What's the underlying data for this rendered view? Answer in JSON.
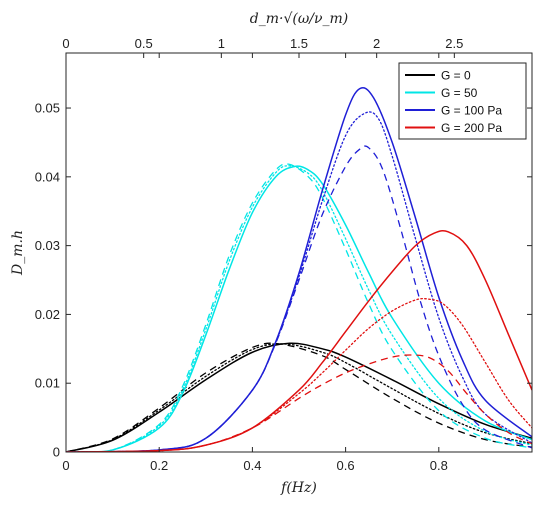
{
  "chart_data": {
    "type": "line",
    "xlabel": "f(Hz)",
    "ylabel": "D_m.h",
    "top_xlabel": "d_m·√(ω/ν_m)",
    "xlim": [
      0,
      1.0
    ],
    "ylim": [
      0,
      0.058
    ],
    "top_xlim": [
      0,
      3.0
    ],
    "x_ticks": [
      0,
      0.2,
      0.4,
      0.6,
      0.8
    ],
    "x_tick_labels": [
      "0",
      "0.2",
      "0.4",
      "0.6",
      "0.8"
    ],
    "y_ticks": [
      0,
      0.01,
      0.02,
      0.03,
      0.04,
      0.05
    ],
    "y_tick_labels": [
      "0",
      "0.01",
      "0.02",
      "0.03",
      "0.04",
      "0.05"
    ],
    "top_ticks": [
      0,
      0.5,
      1,
      1.5,
      2,
      2.5
    ],
    "top_tick_labels": [
      "0",
      "0.5",
      "1",
      "1.5",
      "2",
      "2.5"
    ],
    "grid": false,
    "legend_position": "top-right",
    "series": [
      {
        "name": "G = 0",
        "color": "#000000",
        "style": "solid",
        "x": [
          0,
          0.1,
          0.2,
          0.3,
          0.4,
          0.48,
          0.55,
          0.6,
          0.7,
          0.8,
          0.9,
          1.0
        ],
        "y": [
          0,
          0.0017,
          0.0058,
          0.0105,
          0.0145,
          0.0158,
          0.015,
          0.0138,
          0.0105,
          0.007,
          0.004,
          0.002
        ]
      },
      {
        "name": "",
        "color": "#000000",
        "style": "dashed",
        "x": [
          0,
          0.1,
          0.2,
          0.3,
          0.4,
          0.46,
          0.55,
          0.6,
          0.7,
          0.8,
          0.9,
          1.0
        ],
        "y": [
          0,
          0.0019,
          0.0064,
          0.0115,
          0.0152,
          0.0157,
          0.014,
          0.012,
          0.0078,
          0.0042,
          0.0018,
          0.0007
        ]
      },
      {
        "name": "",
        "color": "#000000",
        "style": "dotted",
        "x": [
          0,
          0.1,
          0.2,
          0.3,
          0.4,
          0.47,
          0.55,
          0.6,
          0.7,
          0.8,
          0.9,
          1.0
        ],
        "y": [
          0,
          0.0018,
          0.0061,
          0.011,
          0.0149,
          0.0157,
          0.0145,
          0.013,
          0.0092,
          0.0056,
          0.0028,
          0.0012
        ]
      },
      {
        "name": "G = 50",
        "color": "#00e6e6",
        "style": "solid",
        "x": [
          0,
          0.1,
          0.2,
          0.25,
          0.3,
          0.35,
          0.4,
          0.45,
          0.49,
          0.52,
          0.55,
          0.6,
          0.65,
          0.7,
          0.8,
          0.9,
          1.0
        ],
        "y": [
          0,
          0.0003,
          0.0035,
          0.0085,
          0.017,
          0.0265,
          0.0348,
          0.04,
          0.0415,
          0.041,
          0.039,
          0.033,
          0.026,
          0.0195,
          0.01,
          0.0045,
          0.0018
        ]
      },
      {
        "name": "",
        "color": "#00e6e6",
        "style": "dashed",
        "x": [
          0,
          0.1,
          0.2,
          0.25,
          0.3,
          0.35,
          0.4,
          0.45,
          0.48,
          0.52,
          0.55,
          0.6,
          0.65,
          0.7,
          0.8,
          0.9,
          1.0
        ],
        "y": [
          0,
          0.0003,
          0.004,
          0.0095,
          0.0185,
          0.0285,
          0.0362,
          0.041,
          0.0418,
          0.04,
          0.037,
          0.0295,
          0.0215,
          0.0148,
          0.006,
          0.002,
          0.0006
        ]
      },
      {
        "name": "",
        "color": "#00e6e6",
        "style": "dotted",
        "x": [
          0,
          0.1,
          0.2,
          0.25,
          0.3,
          0.35,
          0.4,
          0.45,
          0.48,
          0.52,
          0.55,
          0.6,
          0.65,
          0.7,
          0.8,
          0.9,
          1.0
        ],
        "y": [
          0,
          0.0003,
          0.0038,
          0.009,
          0.0178,
          0.0277,
          0.0356,
          0.0406,
          0.0416,
          0.0405,
          0.038,
          0.031,
          0.0235,
          0.017,
          0.0078,
          0.003,
          0.001
        ]
      },
      {
        "name": "G = 100 Pa",
        "color": "#1f1fd6",
        "style": "solid",
        "x": [
          0,
          0.2,
          0.3,
          0.4,
          0.45,
          0.5,
          0.55,
          0.6,
          0.63,
          0.66,
          0.7,
          0.75,
          0.8,
          0.85,
          0.9,
          1.0
        ],
        "y": [
          0,
          0.0003,
          0.002,
          0.009,
          0.016,
          0.026,
          0.038,
          0.049,
          0.0528,
          0.0515,
          0.045,
          0.034,
          0.0225,
          0.0135,
          0.0075,
          0.0022
        ]
      },
      {
        "name": "",
        "color": "#1f1fd6",
        "style": "dashed",
        "x": [
          0,
          0.2,
          0.3,
          0.4,
          0.45,
          0.5,
          0.55,
          0.6,
          0.63,
          0.65,
          0.68,
          0.72,
          0.76,
          0.8,
          0.85,
          0.9,
          1.0
        ],
        "y": [
          0,
          0.0003,
          0.002,
          0.009,
          0.0158,
          0.025,
          0.0345,
          0.0415,
          0.044,
          0.0442,
          0.041,
          0.032,
          0.022,
          0.014,
          0.007,
          0.0032,
          0.0006
        ]
      },
      {
        "name": "",
        "color": "#1f1fd6",
        "style": "dotted",
        "x": [
          0,
          0.2,
          0.3,
          0.4,
          0.45,
          0.5,
          0.55,
          0.6,
          0.64,
          0.67,
          0.7,
          0.75,
          0.8,
          0.85,
          0.9,
          1.0
        ],
        "y": [
          0,
          0.0003,
          0.002,
          0.009,
          0.0159,
          0.0255,
          0.0365,
          0.046,
          0.0492,
          0.0485,
          0.043,
          0.031,
          0.0195,
          0.011,
          0.0055,
          0.0013
        ]
      },
      {
        "name": "G = 200 Pa",
        "color": "#e01010",
        "style": "solid",
        "x": [
          0,
          0.2,
          0.3,
          0.4,
          0.5,
          0.55,
          0.6,
          0.65,
          0.7,
          0.75,
          0.79,
          0.82,
          0.86,
          0.9,
          0.95,
          1.0
        ],
        "y": [
          0,
          0.0002,
          0.001,
          0.0035,
          0.009,
          0.013,
          0.0175,
          0.022,
          0.0262,
          0.03,
          0.0318,
          0.032,
          0.03,
          0.025,
          0.017,
          0.009
        ]
      },
      {
        "name": "",
        "color": "#e01010",
        "style": "dashed",
        "x": [
          0,
          0.2,
          0.3,
          0.4,
          0.5,
          0.55,
          0.6,
          0.65,
          0.7,
          0.74,
          0.78,
          0.82,
          0.86,
          0.9,
          0.95,
          1.0
        ],
        "y": [
          0,
          0.0002,
          0.001,
          0.0035,
          0.0078,
          0.0098,
          0.0115,
          0.0128,
          0.0138,
          0.0141,
          0.0137,
          0.0118,
          0.0085,
          0.0055,
          0.0028,
          0.0012
        ]
      },
      {
        "name": "",
        "color": "#e01010",
        "style": "dotted",
        "x": [
          0,
          0.2,
          0.3,
          0.4,
          0.5,
          0.55,
          0.6,
          0.65,
          0.7,
          0.75,
          0.78,
          0.81,
          0.85,
          0.9,
          0.95,
          1.0
        ],
        "y": [
          0,
          0.0002,
          0.001,
          0.0035,
          0.0085,
          0.0115,
          0.0148,
          0.018,
          0.0205,
          0.0221,
          0.0222,
          0.0215,
          0.0185,
          0.013,
          0.0075,
          0.0035
        ]
      }
    ]
  }
}
